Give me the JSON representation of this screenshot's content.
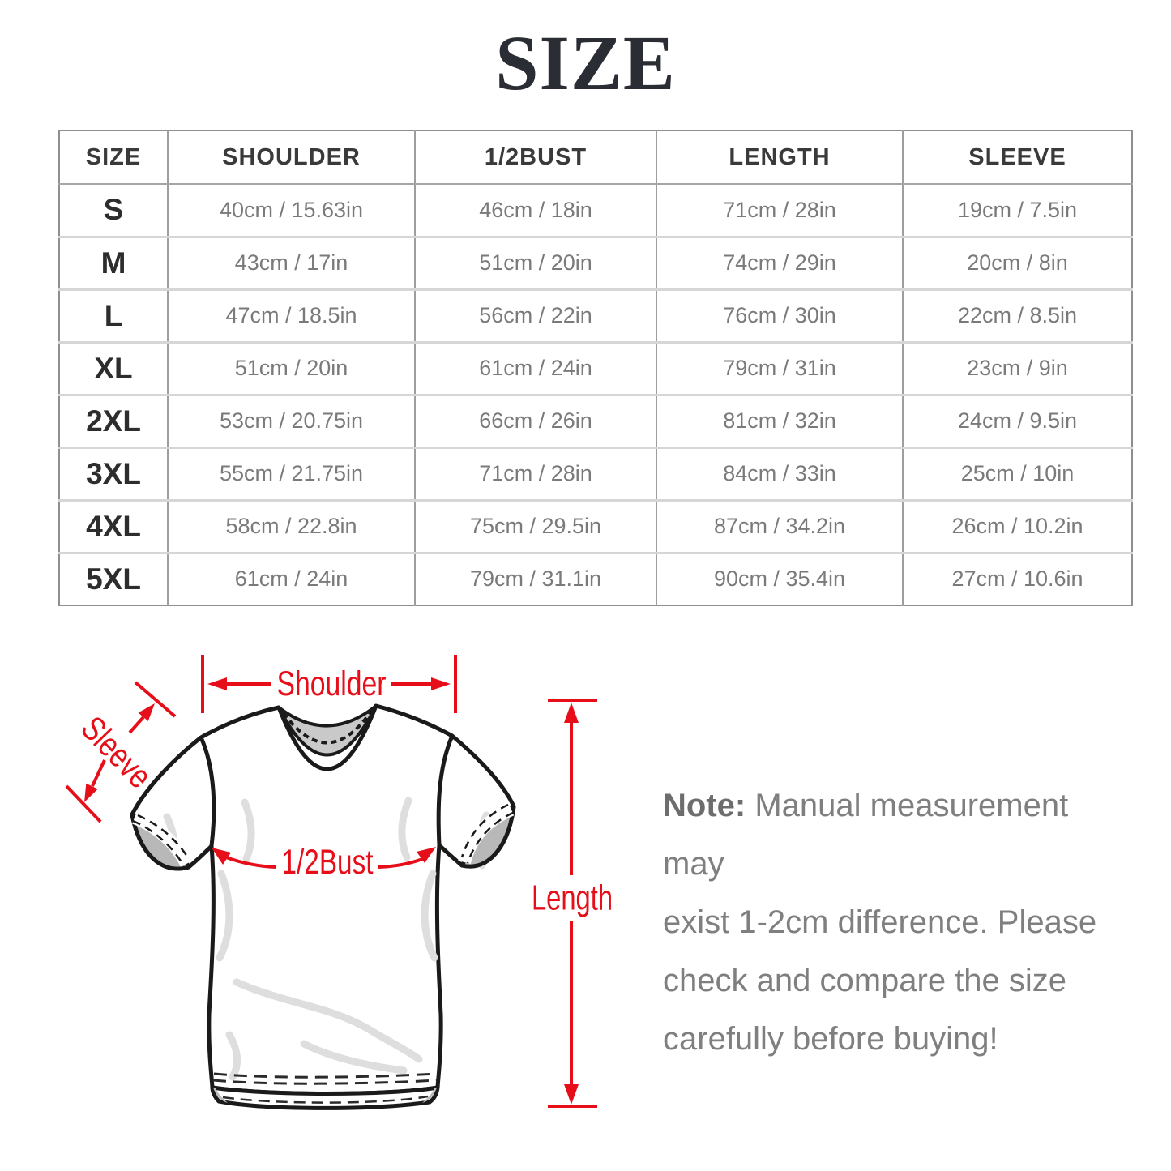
{
  "title": "SIZE",
  "table": {
    "headers": [
      "SIZE",
      "SHOULDER",
      "1/2BUST",
      "LENGTH",
      "SLEEVE"
    ],
    "rows": [
      [
        "S",
        "40cm / 15.63in",
        "46cm / 18in",
        "71cm / 28in",
        "19cm / 7.5in"
      ],
      [
        "M",
        "43cm / 17in",
        "51cm / 20in",
        "74cm / 29in",
        "20cm / 8in"
      ],
      [
        "L",
        "47cm / 18.5in",
        "56cm / 22in",
        "76cm / 30in",
        "22cm / 8.5in"
      ],
      [
        "XL",
        "51cm / 20in",
        "61cm / 24in",
        "79cm / 31in",
        "23cm / 9in"
      ],
      [
        "2XL",
        "53cm / 20.75in",
        "66cm / 26in",
        "81cm / 32in",
        "24cm / 9.5in"
      ],
      [
        "3XL",
        "55cm / 21.75in",
        "71cm / 28in",
        "84cm / 33in",
        "25cm / 10in"
      ],
      [
        "4XL",
        "58cm / 22.8in",
        "75cm / 29.5in",
        "87cm / 34.2in",
        "26cm / 10.2in"
      ],
      [
        "5XL",
        "61cm / 24in",
        "79cm / 31.1in",
        "90cm / 35.4in",
        "27cm / 10.6in"
      ]
    ]
  },
  "diagram": {
    "labels": {
      "shoulder": "Shoulder",
      "sleeve": "Sleeve",
      "bust": "1/2Bust",
      "length": "Length"
    }
  },
  "note": {
    "label": "Note:",
    "lines": [
      "Manual measurement may",
      "exist 1-2cm difference. Please",
      "check and compare the size",
      "carefully before buying!"
    ]
  },
  "colors": {
    "accent_red": "#e60e19",
    "title_dark": "#2a2d33",
    "header_text": "#3a3a3a",
    "cell_text": "#7a7a7a",
    "note_gray": "#7f7f7f",
    "outline_black": "#1a1a1a",
    "collar_gray": "#c9c9c9",
    "cuff_gray": "#b8b8b8",
    "wrinkle_gray": "#dedede",
    "border_dark": "#8f8f8f",
    "border_light": "#d6d6d6"
  }
}
